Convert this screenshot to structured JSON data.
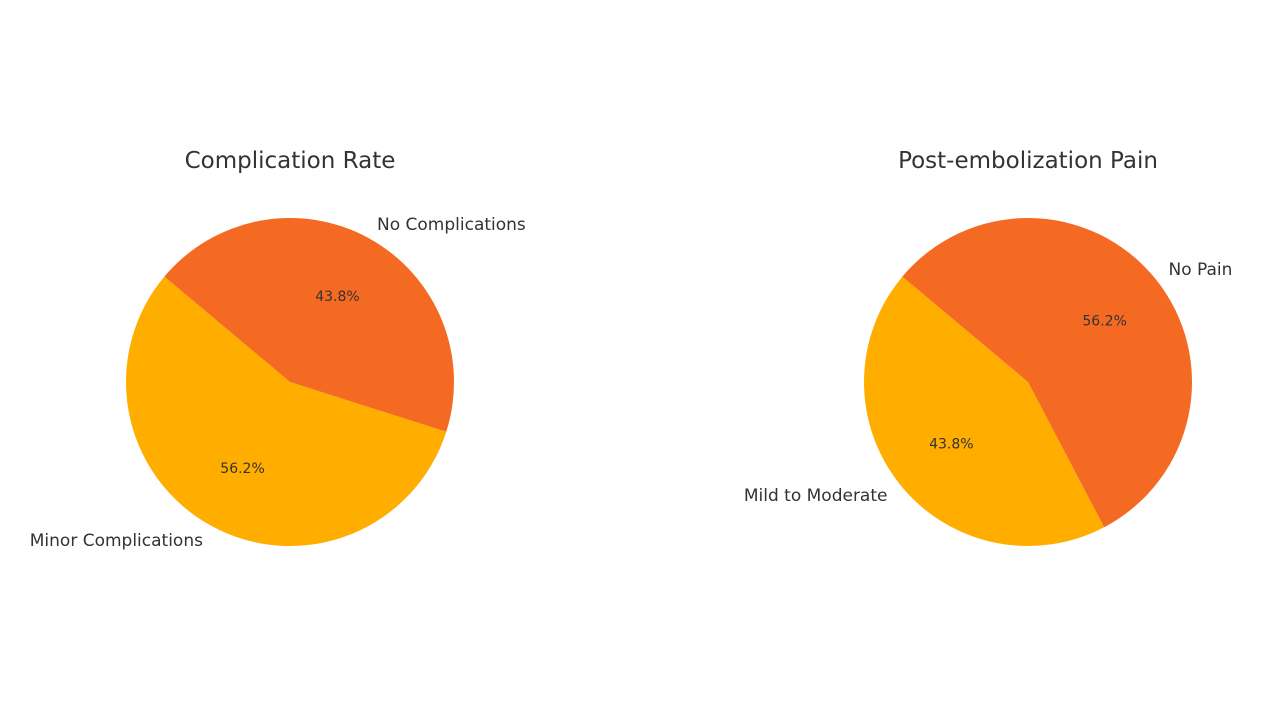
{
  "chart_data": [
    {
      "type": "pie",
      "title": "Complication Rate",
      "categories": [
        "Minor Complications",
        "No Complications"
      ],
      "values": [
        56.2,
        43.8
      ],
      "percent_labels": [
        "56.2%",
        "43.8%"
      ],
      "colors": [
        "#FFAE00",
        "#F46A22"
      ],
      "start_angle_deg": 140,
      "direction": "counterclockwise"
    },
    {
      "type": "pie",
      "title": "Post-embolization Pain",
      "categories": [
        "Mild to Moderate",
        "No Pain"
      ],
      "values": [
        43.8,
        56.2
      ],
      "percent_labels": [
        "43.8%",
        "56.2%"
      ],
      "colors": [
        "#FFAE00",
        "#F46A22"
      ],
      "start_angle_deg": 140,
      "direction": "counterclockwise"
    }
  ]
}
